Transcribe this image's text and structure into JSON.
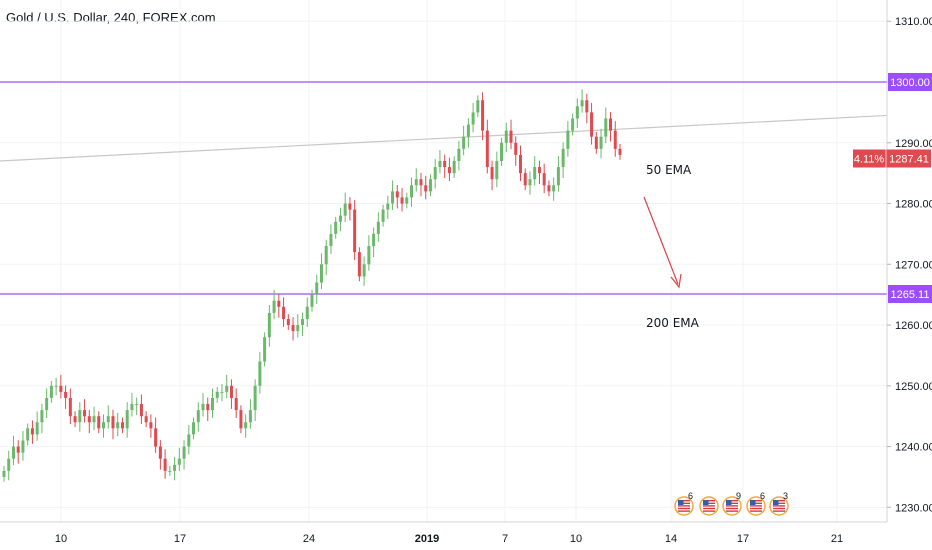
{
  "header": {
    "title": "Gold / U.S. Dollar, 240, FOREX.com"
  },
  "colors": {
    "up": "#6bb86b",
    "down": "#e0494f",
    "level_line": "#9c4dff",
    "trendline": "#c7c7c7",
    "price_badge": "#e0494f",
    "arrow": "#e0404a",
    "axis_text": "#131722",
    "grid": "#f1f3f6"
  },
  "chart_data": {
    "type": "candlestick",
    "symbol": "Gold / U.S. Dollar",
    "interval": "240",
    "source": "FOREX.com",
    "ylim": [
      1228,
      1314
    ],
    "y_ticks": [
      "1310.00",
      "1300.00",
      "1290.00",
      "1280.00",
      "1270.00",
      "1260.00",
      "1250.00",
      "1240.00",
      "1230.00"
    ],
    "x_ticks": [
      {
        "label": "10",
        "bold": false
      },
      {
        "label": "17",
        "bold": false
      },
      {
        "label": "24",
        "bold": false
      },
      {
        "label": "2019",
        "bold": true
      },
      {
        "label": "7",
        "bold": false
      },
      {
        "label": "10",
        "bold": false
      },
      {
        "label": "14",
        "bold": false
      },
      {
        "label": "17",
        "bold": false
      },
      {
        "label": "21",
        "bold": false
      }
    ],
    "horizontal_levels": [
      {
        "value": 1300.0,
        "label": "1300.00"
      },
      {
        "value": 1265.11,
        "label": "1265.11"
      }
    ],
    "trendline": {
      "start": 1287.0,
      "end": 1294.5
    },
    "current_price": {
      "value": 1287.41,
      "label": "1287.41",
      "change": "4.11%"
    },
    "annotations": [
      "50 EMA",
      "200 EMA"
    ],
    "candles_close": [
      1236,
      1238,
      1240,
      1239,
      1241,
      1243,
      1242,
      1244,
      1246,
      1248,
      1250,
      1250,
      1249,
      1248,
      1245,
      1244,
      1246,
      1245,
      1244,
      1245,
      1243,
      1244,
      1245,
      1243,
      1244,
      1243,
      1246,
      1247,
      1247,
      1245,
      1244,
      1243,
      1240,
      1238,
      1236,
      1236,
      1237,
      1238,
      1240,
      1242,
      1244,
      1246,
      1247,
      1246,
      1248,
      1249,
      1249,
      1250,
      1248,
      1246,
      1243,
      1244,
      1246,
      1250,
      1254,
      1258,
      1262,
      1264,
      1263,
      1261,
      1260,
      1259,
      1260,
      1261,
      1263,
      1265,
      1267,
      1270,
      1273,
      1275,
      1277,
      1278,
      1280,
      1279,
      1272,
      1268,
      1270,
      1273,
      1275,
      1277,
      1279,
      1280,
      1282,
      1281,
      1280,
      1281,
      1283,
      1284,
      1283,
      1282,
      1284,
      1286,
      1287,
      1286,
      1285,
      1287,
      1289,
      1291,
      1293,
      1295,
      1297,
      1292,
      1286,
      1284,
      1287,
      1290,
      1292,
      1290,
      1288,
      1285,
      1283,
      1284,
      1286,
      1285,
      1283,
      1282,
      1283,
      1286,
      1289,
      1292,
      1294,
      1296,
      1297,
      1295,
      1291,
      1289,
      1291,
      1294,
      1292,
      1289,
      1288
    ]
  }
}
